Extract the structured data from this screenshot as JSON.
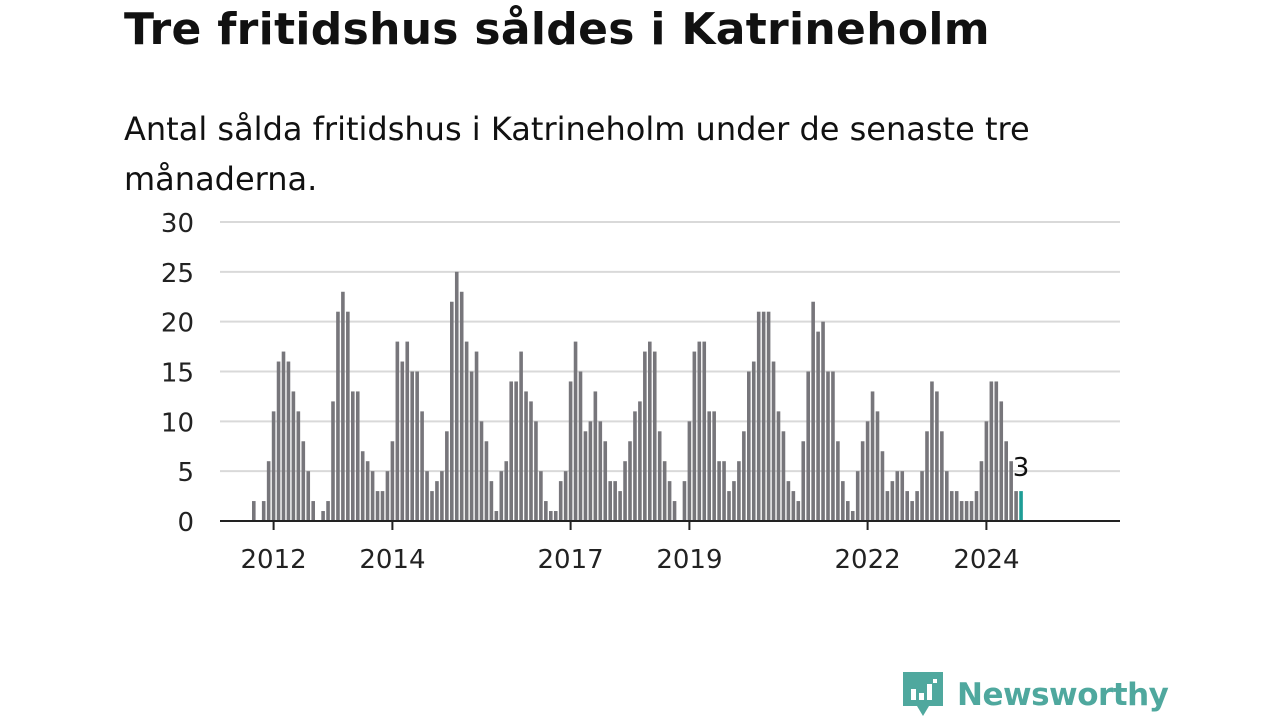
{
  "title": "Tre fritidshus såldes i Katrineholm",
  "subtitle": "Antal sålda fritidshus i Katrineholm under de senaste tre månaderna.",
  "brand": {
    "name": "Newsworthy",
    "icon": "newsworthy-logo-icon",
    "color": "#4fa89e"
  },
  "colors": {
    "bar": "#77767b",
    "highlight": "#1e9d96",
    "grid": "#d9d9d9",
    "axis": "#222222"
  },
  "chart_data": {
    "type": "bar",
    "title": "",
    "xlabel": "",
    "ylabel": "",
    "ylim": [
      0,
      30
    ],
    "yticks": [
      "0",
      "5",
      "10",
      "15",
      "20",
      "25",
      "30"
    ],
    "xticks": [
      "2012",
      "2014",
      "2017",
      "2019",
      "2022",
      "2024"
    ],
    "x_start": "2011-05",
    "grid": true,
    "highlight_label": "3",
    "values": [
      0,
      0,
      0,
      0,
      2,
      0,
      2,
      6,
      11,
      16,
      17,
      16,
      13,
      11,
      8,
      5,
      2,
      0,
      1,
      2,
      12,
      21,
      23,
      21,
      13,
      13,
      7,
      6,
      5,
      3,
      3,
      5,
      8,
      18,
      16,
      18,
      15,
      15,
      11,
      5,
      3,
      4,
      5,
      9,
      22,
      25,
      23,
      18,
      15,
      17,
      10,
      8,
      4,
      1,
      5,
      6,
      14,
      14,
      17,
      13,
      12,
      10,
      5,
      2,
      1,
      1,
      4,
      5,
      14,
      18,
      15,
      9,
      10,
      13,
      10,
      8,
      4,
      4,
      3,
      6,
      8,
      11,
      12,
      17,
      18,
      17,
      9,
      6,
      4,
      2,
      0,
      4,
      10,
      17,
      18,
      18,
      11,
      11,
      6,
      6,
      3,
      4,
      6,
      9,
      15,
      16,
      21,
      21,
      21,
      16,
      11,
      9,
      4,
      3,
      2,
      8,
      15,
      22,
      19,
      20,
      15,
      15,
      8,
      4,
      2,
      1,
      5,
      8,
      10,
      13,
      11,
      7,
      3,
      4,
      5,
      5,
      3,
      2,
      3,
      5,
      9,
      14,
      13,
      9,
      5,
      3,
      3,
      2,
      2,
      2,
      3,
      6,
      10,
      14,
      14,
      12,
      8,
      6,
      3,
      3
    ]
  }
}
